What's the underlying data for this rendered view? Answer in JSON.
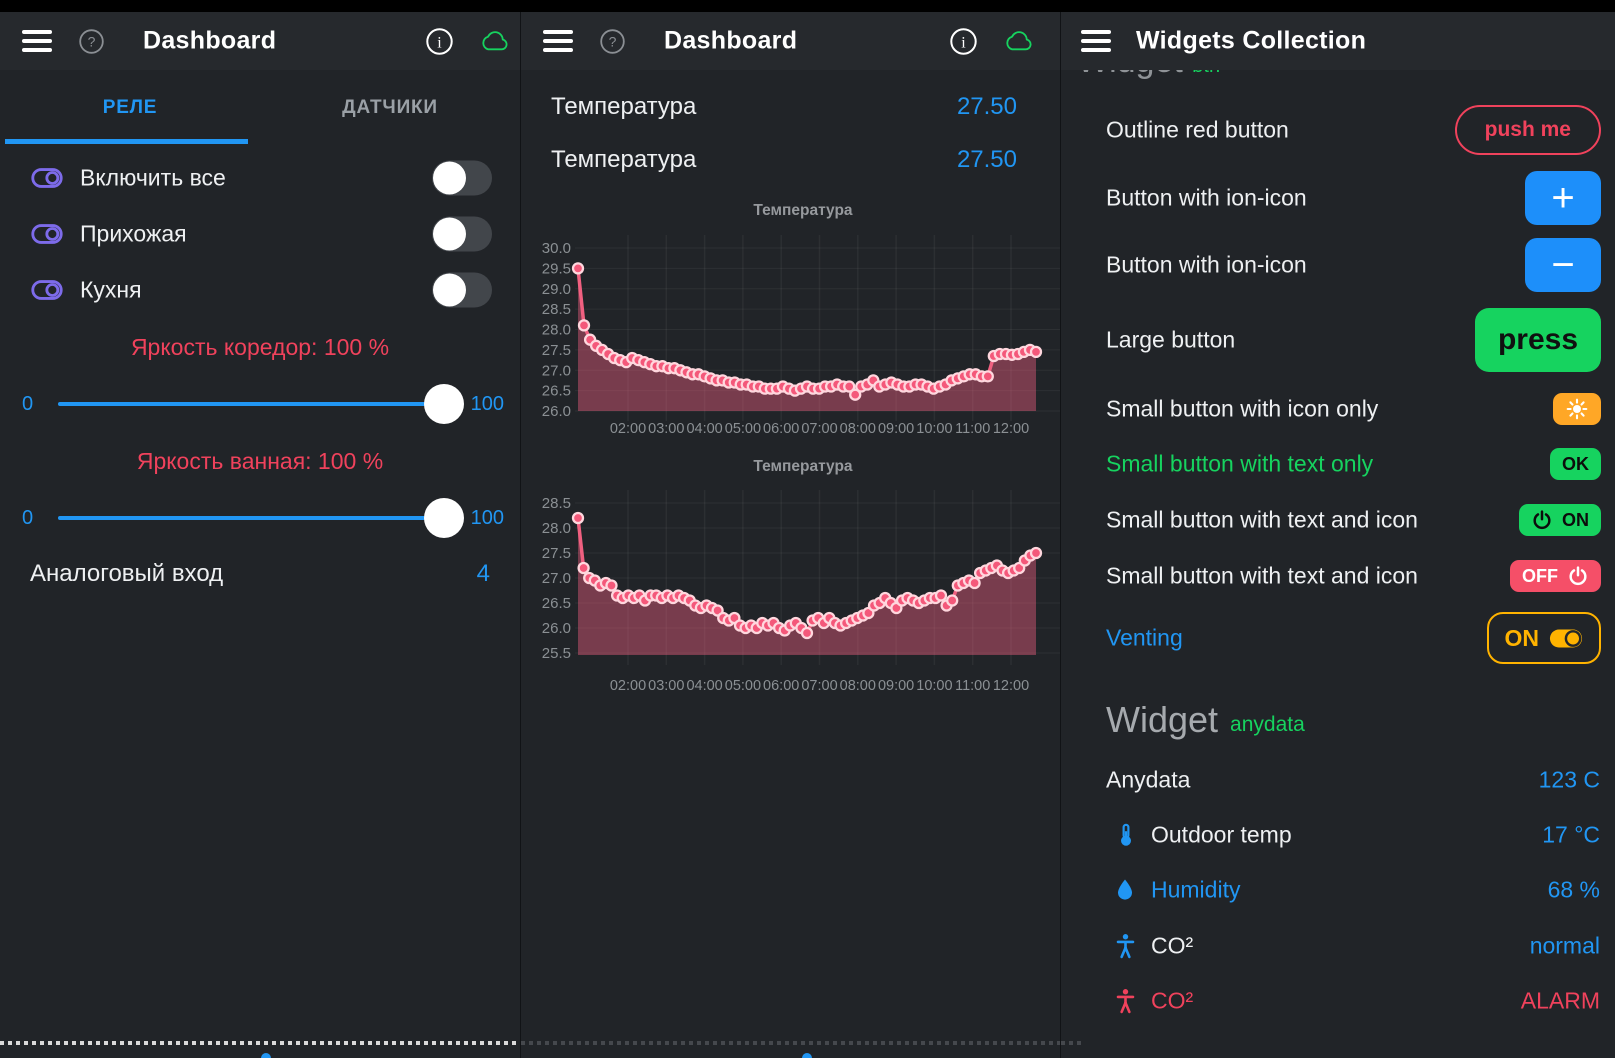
{
  "colors": {
    "bg": "#212428",
    "bar": "#26292d",
    "text": "#eef0f2",
    "dim": "#9aa0a6",
    "blue": "#2196f3",
    "btnblue": "#1d8ffa",
    "green": "#16d35f",
    "red": "#f0425c",
    "redbtn": "#f54f68",
    "amber": "#ffb300",
    "orange": "#ffa726",
    "purple": "#7d6bea",
    "tick": "#8b9094",
    "chart_line": "#f06080",
    "chart_point": "#f4587a",
    "chart_point_ring": "#ffd7de",
    "chart_fill": "rgba(240,96,128,0.42)"
  },
  "left": {
    "title": "Dashboard",
    "tabs": [
      {
        "label": "РЕЛЕ",
        "active": true
      },
      {
        "label": "ДАТЧИКИ",
        "active": false
      }
    ],
    "switches": [
      {
        "label": "Включить все",
        "state": "off"
      },
      {
        "label": "Прихожая",
        "state": "off"
      },
      {
        "label": "Кухня",
        "state": "off"
      }
    ],
    "sliders": [
      {
        "title": "Яркость коредор: 100 %",
        "min_label": "0",
        "max_label": "100",
        "value_pct": 100
      },
      {
        "title": "Яркость ванная: 100 %",
        "min_label": "0",
        "max_label": "100",
        "value_pct": 100
      }
    ],
    "analog_row": {
      "label": "Аналоговый вход",
      "value": "4"
    }
  },
  "middle": {
    "title": "Dashboard",
    "value_rows": [
      {
        "label": "Температура",
        "value": "27.50"
      },
      {
        "label": "Температура",
        "value": "27.50"
      }
    ]
  },
  "right": {
    "title": "Widgets Collection",
    "clipped_heading": {
      "word": "Widget",
      "tag": "btn"
    },
    "widget_rows": [
      {
        "label": "Outline red button",
        "label_style": "white",
        "button": {
          "kind": "outline-red",
          "text": "push me"
        }
      },
      {
        "label": "Button with ion-icon",
        "label_style": "white",
        "button": {
          "kind": "blue-square",
          "text": "+"
        }
      },
      {
        "label": "Button with ion-icon",
        "label_style": "white",
        "button": {
          "kind": "blue-square",
          "text": "−"
        }
      },
      {
        "label": "Large button",
        "label_style": "white",
        "button": {
          "kind": "green-large",
          "text": "press"
        }
      },
      {
        "label": "Small button with icon only",
        "label_style": "white",
        "button": {
          "kind": "orange-small",
          "icon": "sun"
        }
      },
      {
        "label": "Small button with text only",
        "label_style": "green",
        "button": {
          "kind": "green-small",
          "text": "OK"
        }
      },
      {
        "label": "Small button with text and icon",
        "label_style": "white",
        "button": {
          "kind": "green-small",
          "icon": "power",
          "icon_side": "left",
          "text": "ON"
        }
      },
      {
        "label": "Small button with text and icon",
        "label_style": "white",
        "button": {
          "kind": "red-small",
          "icon": "power",
          "icon_side": "right",
          "text": "OFF"
        }
      },
      {
        "label": "Venting",
        "label_style": "blue",
        "button": {
          "kind": "outline-amber",
          "icon": "toggle-on",
          "icon_side": "right",
          "text": "ON"
        }
      }
    ],
    "section_heading": {
      "word": "Widget",
      "tag": "anydata"
    },
    "data_rows": [
      {
        "icon": "",
        "icon_color": "",
        "label": "Anydata",
        "label_style": "white",
        "value": "123 C",
        "value_style": "blue"
      },
      {
        "icon": "thermometer",
        "icon_color": "blue",
        "label": "Outdoor temp",
        "label_style": "white",
        "value": "17 °C",
        "value_style": "blue"
      },
      {
        "icon": "drop",
        "icon_color": "blue",
        "label": "Humidity",
        "label_style": "blue",
        "value": "68 %",
        "value_style": "blue"
      },
      {
        "icon": "person",
        "icon_color": "blue",
        "label": "CO²",
        "label_style": "white",
        "value": "normal",
        "value_style": "blue"
      },
      {
        "icon": "person",
        "icon_color": "red",
        "label": "CO²",
        "label_style": "red",
        "value": "ALARM",
        "value_style": "red"
      }
    ]
  },
  "chart_data": [
    {
      "type": "area",
      "title": "Температура",
      "x_labels": [
        "02:00",
        "03:00",
        "04:00",
        "05:00",
        "06:00",
        "07:00",
        "08:00",
        "09:00",
        "10:00",
        "11:00",
        "12:00"
      ],
      "ylim": [
        26.0,
        30.0
      ],
      "ytick_step": 0.5,
      "values": [
        29.5,
        28.1,
        27.75,
        27.6,
        27.5,
        27.4,
        27.3,
        27.25,
        27.2,
        27.3,
        27.25,
        27.2,
        27.15,
        27.1,
        27.1,
        27.05,
        27.05,
        27.0,
        26.95,
        26.9,
        26.9,
        26.85,
        26.8,
        26.75,
        26.75,
        26.7,
        26.7,
        26.65,
        26.65,
        26.6,
        26.6,
        26.55,
        26.55,
        26.55,
        26.6,
        26.55,
        26.5,
        26.55,
        26.6,
        26.55,
        26.55,
        26.6,
        26.6,
        26.65,
        26.6,
        26.6,
        26.4,
        26.6,
        26.65,
        26.75,
        26.6,
        26.65,
        26.7,
        26.65,
        26.6,
        26.6,
        26.65,
        26.65,
        26.6,
        26.55,
        26.6,
        26.65,
        26.75,
        26.8,
        26.85,
        26.9,
        26.9,
        26.85,
        26.85,
        27.35,
        27.4,
        27.4,
        27.38,
        27.4,
        27.45,
        27.5,
        27.45
      ]
    },
    {
      "type": "area",
      "title": "Температура",
      "x_labels": [
        "02:00",
        "03:00",
        "04:00",
        "05:00",
        "06:00",
        "07:00",
        "08:00",
        "09:00",
        "10:00",
        "11:00",
        "12:00"
      ],
      "ylim": [
        25.5,
        28.5
      ],
      "ytick_step": 0.5,
      "values": [
        28.2,
        27.2,
        27.0,
        26.95,
        26.85,
        26.9,
        26.85,
        26.65,
        26.6,
        26.65,
        26.6,
        26.65,
        26.55,
        26.65,
        26.65,
        26.6,
        26.65,
        26.6,
        26.65,
        26.6,
        26.55,
        26.45,
        26.4,
        26.45,
        26.4,
        26.35,
        26.2,
        26.15,
        26.2,
        26.05,
        26.0,
        26.05,
        26.0,
        26.1,
        26.05,
        26.1,
        26.0,
        25.95,
        26.05,
        26.1,
        26.0,
        25.9,
        26.15,
        26.2,
        26.1,
        26.2,
        26.1,
        26.05,
        26.1,
        26.15,
        26.2,
        26.25,
        26.3,
        26.45,
        26.5,
        26.6,
        26.5,
        26.4,
        26.55,
        26.6,
        26.55,
        26.5,
        26.55,
        26.6,
        26.6,
        26.65,
        26.45,
        26.55,
        26.85,
        26.9,
        26.95,
        26.9,
        27.1,
        27.15,
        27.2,
        27.25,
        27.15,
        27.1,
        27.15,
        27.2,
        27.35,
        27.45,
        27.5
      ]
    }
  ]
}
